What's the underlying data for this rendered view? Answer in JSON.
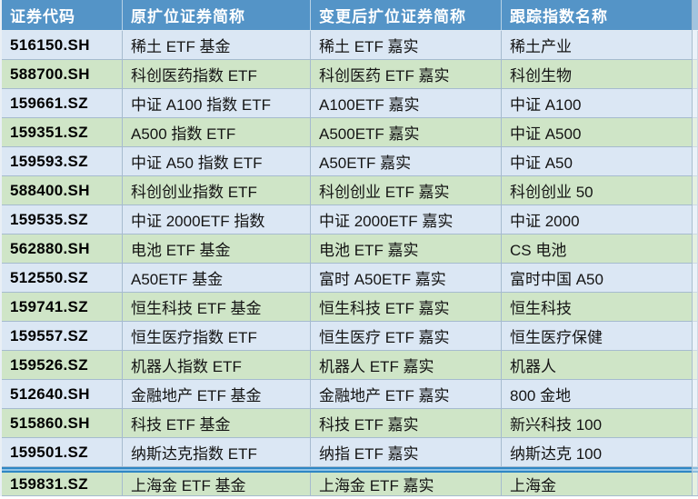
{
  "colors": {
    "header_bg": "#5494C7",
    "header_text": "#FFFFFF",
    "row_blue": "#DBE7F4",
    "row_green": "#CFE5C7",
    "grid_border": "#A6BBCF",
    "divider_dark": "#2E86C4",
    "divider_light": "#8FC3E6",
    "text": "#141414"
  },
  "chart_data": {
    "type": "table",
    "columns": [
      "证券代码",
      "原扩位证券简称",
      "变更后扩位证券简称",
      "跟踪指数名称"
    ],
    "divider_after_row_index": 14,
    "rows": [
      {
        "code": "516150.SH",
        "old_name": "稀土 ETF 基金",
        "new_name": "稀土 ETF 嘉实",
        "index_name": "稀土产业"
      },
      {
        "code": "588700.SH",
        "old_name": "科创医药指数 ETF",
        "new_name": "科创医药 ETF 嘉实",
        "index_name": "科创生物"
      },
      {
        "code": "159661.SZ",
        "old_name": "中证 A100 指数 ETF",
        "new_name": "A100ETF 嘉实",
        "index_name": "中证 A100"
      },
      {
        "code": "159351.SZ",
        "old_name": "A500 指数 ETF",
        "new_name": "A500ETF 嘉实",
        "index_name": "中证 A500"
      },
      {
        "code": "159593.SZ",
        "old_name": "中证 A50 指数 ETF",
        "new_name": "A50ETF 嘉实",
        "index_name": "中证 A50"
      },
      {
        "code": "588400.SH",
        "old_name": "科创创业指数 ETF",
        "new_name": "科创创业 ETF 嘉实",
        "index_name": "科创创业 50"
      },
      {
        "code": "159535.SZ",
        "old_name": "中证 2000ETF 指数",
        "new_name": "中证 2000ETF 嘉实",
        "index_name": "中证 2000"
      },
      {
        "code": "562880.SH",
        "old_name": "电池 ETF 基金",
        "new_name": "电池 ETF 嘉实",
        "index_name": "CS 电池"
      },
      {
        "code": "512550.SZ",
        "old_name": "A50ETF 基金",
        "new_name": "富时 A50ETF 嘉实",
        "index_name": "富时中国 A50"
      },
      {
        "code": "159741.SZ",
        "old_name": "恒生科技 ETF 基金",
        "new_name": "恒生科技 ETF 嘉实",
        "index_name": "恒生科技"
      },
      {
        "code": "159557.SZ",
        "old_name": "恒生医疗指数 ETF",
        "new_name": "恒生医疗 ETF 嘉实",
        "index_name": "恒生医疗保健"
      },
      {
        "code": "159526.SZ",
        "old_name": "机器人指数 ETF",
        "new_name": "机器人 ETF 嘉实",
        "index_name": "机器人"
      },
      {
        "code": "512640.SH",
        "old_name": "金融地产 ETF 基金",
        "new_name": "金融地产 ETF 嘉实",
        "index_name": "800 金地"
      },
      {
        "code": "515860.SH",
        "old_name": "科技 ETF 基金",
        "new_name": "科技 ETF 嘉实",
        "index_name": "新兴科技 100"
      },
      {
        "code": "159501.SZ",
        "old_name": "纳斯达克指数 ETF",
        "new_name": "纳指 ETF 嘉实",
        "index_name": "纳斯达克 100"
      },
      {
        "code": "159831.SZ",
        "old_name": "上海金 ETF 基金",
        "new_name": "上海金 ETF 嘉实",
        "index_name": "上海金"
      }
    ]
  }
}
